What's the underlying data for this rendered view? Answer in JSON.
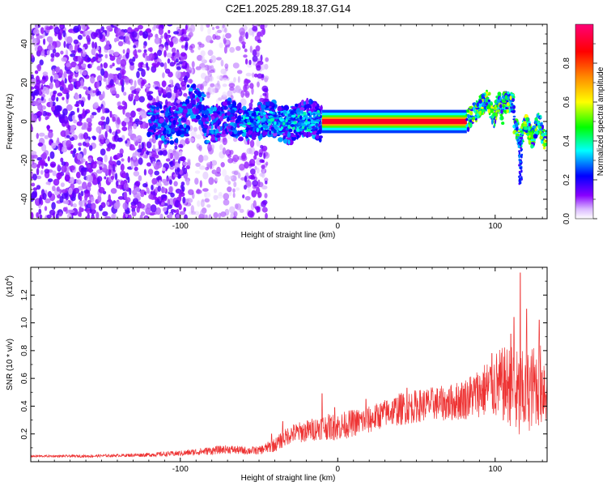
{
  "title": "C2E1.2025.289.18.37.G14",
  "colors": {
    "snr_line": "#ee3333",
    "axis": "#000000"
  },
  "chart_data": [
    {
      "type": "heatmap",
      "xlabel": "Height of straight line (km)",
      "ylabel": "Frequency (Hz)",
      "xlim": [
        -195,
        133
      ],
      "ylim": [
        -50,
        50
      ],
      "x_ticks": [
        -100,
        0,
        100
      ],
      "y_ticks": [
        -40,
        -20,
        0,
        20,
        40
      ],
      "colorbar": {
        "label": "Normalized spectral amplitude",
        "range": [
          0,
          1
        ],
        "ticks": [
          "0.0",
          "0.2",
          "0.4",
          "0.6",
          "0.8"
        ],
        "tick_values": [
          0.0,
          0.2,
          0.4,
          0.6,
          0.8
        ],
        "colormap": [
          "#ffffff",
          "#8800ff",
          "#0000ff",
          "#00ffff",
          "#00ff00",
          "#ffff00",
          "#ff8800",
          "#ff0000",
          "#ff0077"
        ]
      },
      "features": [
        {
          "x_range": [
            -195,
            -95
          ],
          "frequency_range": [
            -50,
            50
          ],
          "amplitude": [
            0.05,
            0.15
          ]
        },
        {
          "x_range": [
            -95,
            -45
          ],
          "frequency_range": [
            -50,
            50
          ],
          "amplitude": [
            0.02,
            0.1
          ]
        },
        {
          "x_range": [
            -120,
            -10
          ],
          "frequency_range": [
            -15,
            15
          ],
          "amplitude": [
            0.1,
            0.3
          ]
        },
        {
          "x_range": [
            -10,
            82
          ],
          "frequency": 0,
          "amplitude": [
            0.8,
            1.0
          ]
        },
        {
          "x_range": [
            82,
            133
          ],
          "frequency_range": [
            -15,
            15
          ],
          "amplitude": [
            0.3,
            0.6
          ]
        }
      ]
    },
    {
      "type": "line",
      "xlabel": "Height of straight line (km)",
      "ylabel": "SNR (10 * v/v)",
      "y_multiplier_label": "(x10",
      "y_multiplier_exp": "4",
      "xlim": [
        -195,
        133
      ],
      "ylim": [
        0,
        1.4
      ],
      "x_ticks": [
        -100,
        0,
        100
      ],
      "y_ticks": [
        0.2,
        0.4,
        0.6,
        0.8,
        1.0,
        1.2
      ],
      "y_tick_labels": [
        "0.2",
        "0.4",
        "0.6",
        "0.8",
        "1.0",
        "1.2"
      ],
      "series": [
        {
          "x": [
            -195,
            -180,
            -160,
            -140,
            -120,
            -100,
            -90,
            -80,
            -70,
            -60,
            -50,
            -40,
            -30,
            -20,
            -10,
            0,
            10,
            20,
            30,
            40,
            50,
            60,
            70,
            80,
            90,
            100,
            110,
            115,
            120,
            125,
            133
          ],
          "y": [
            0.04,
            0.04,
            0.04,
            0.045,
            0.05,
            0.06,
            0.07,
            0.08,
            0.09,
            0.08,
            0.08,
            0.12,
            0.2,
            0.22,
            0.25,
            0.25,
            0.28,
            0.3,
            0.35,
            0.38,
            0.4,
            0.42,
            0.42,
            0.45,
            0.5,
            0.55,
            0.55,
            0.45,
            0.5,
            0.55,
            0.55
          ],
          "spread": [
            0.008,
            0.008,
            0.01,
            0.01,
            0.015,
            0.02,
            0.025,
            0.03,
            0.03,
            0.03,
            0.03,
            0.05,
            0.07,
            0.08,
            0.09,
            0.1,
            0.1,
            0.1,
            0.1,
            0.12,
            0.12,
            0.12,
            0.13,
            0.15,
            0.18,
            0.25,
            0.3,
            0.35,
            0.3,
            0.3,
            0.3
          ],
          "peaks": [
            [
              -42,
              0.2
            ],
            [
              -35,
              0.29
            ],
            [
              -10,
              0.49
            ],
            [
              -2,
              0.39
            ],
            [
              18,
              0.45
            ],
            [
              44,
              0.53
            ],
            [
              98,
              0.78
            ],
            [
              110,
              0.92
            ],
            [
              112,
              1.04
            ],
            [
              116,
              1.36
            ],
            [
              120,
              1.1
            ],
            [
              128,
              1.02
            ]
          ]
        }
      ]
    }
  ]
}
